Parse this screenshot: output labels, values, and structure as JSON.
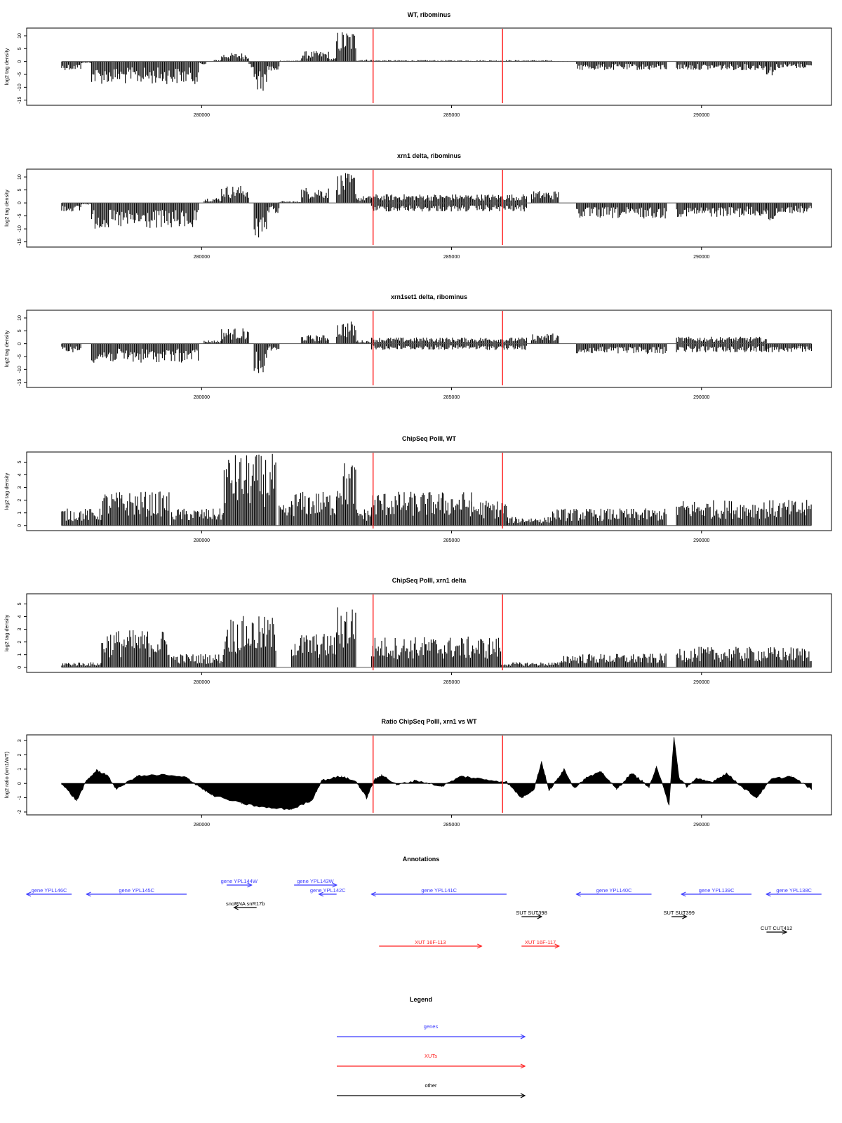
{
  "colors": {
    "gene": "#3b3bff",
    "xut": "#ff2020",
    "other": "#000000",
    "marker": "#ff3030",
    "bars": "#000000",
    "frame": "#000000"
  },
  "chart_data": [
    {
      "type": "bar",
      "title": "WT, ribominus",
      "ylabel": "log2 tag density",
      "ylim": [
        -17,
        13
      ],
      "yticks": [
        10,
        5,
        0,
        -5,
        -10,
        -15
      ],
      "xlim": [
        276500,
        292600
      ],
      "xticks": [
        280000,
        285000,
        290000
      ],
      "grid": false,
      "markers": [
        283430,
        286020
      ],
      "baseline": 0,
      "segments": [
        {
          "from": 277200,
          "to": 277600,
          "level": -2.5
        },
        {
          "from": 277600,
          "to": 277800,
          "level": -0.5
        },
        {
          "from": 277800,
          "to": 279950,
          "level": -6.5
        },
        {
          "from": 279950,
          "to": 280100,
          "level": -1
        },
        {
          "from": 280250,
          "to": 280400,
          "level": 0.5
        },
        {
          "from": 280400,
          "to": 280950,
          "level": 2.5
        },
        {
          "from": 280950,
          "to": 281050,
          "level": -2
        },
        {
          "from": 281050,
          "to": 281300,
          "level": -8.5
        },
        {
          "from": 281300,
          "to": 281550,
          "level": -3
        },
        {
          "from": 281550,
          "to": 282000,
          "level": 0.3
        },
        {
          "from": 282000,
          "to": 282550,
          "level": 3
        },
        {
          "from": 282550,
          "to": 282700,
          "level": 1
        },
        {
          "from": 282700,
          "to": 283100,
          "level": 9
        },
        {
          "from": 283100,
          "to": 283400,
          "level": 0.6
        },
        {
          "from": 283400,
          "to": 287000,
          "level": 0.4
        },
        {
          "from": 287000,
          "to": 287350,
          "level": 0.1
        },
        {
          "from": 287500,
          "to": 289300,
          "level": -2.5
        },
        {
          "from": 289500,
          "to": 291300,
          "level": -2.5
        },
        {
          "from": 291300,
          "to": 291500,
          "level": -4
        },
        {
          "from": 291500,
          "to": 292200,
          "level": -2
        }
      ]
    },
    {
      "type": "bar",
      "title": "xrn1 delta, ribominus",
      "ylabel": "log2 tag density",
      "ylim": [
        -17,
        13
      ],
      "yticks": [
        10,
        5,
        0,
        -5,
        -10,
        -15
      ],
      "xlim": [
        276500,
        292600
      ],
      "xticks": [
        280000,
        285000,
        290000
      ],
      "grid": false,
      "markers": [
        283430,
        286020
      ],
      "baseline": 0,
      "segments": [
        {
          "from": 277200,
          "to": 277600,
          "level": -2.5
        },
        {
          "from": 277600,
          "to": 277800,
          "level": -0.5
        },
        {
          "from": 277800,
          "to": 279950,
          "level": -7.5
        },
        {
          "from": 280050,
          "to": 280400,
          "level": 1.5
        },
        {
          "from": 280400,
          "to": 280950,
          "level": 5
        },
        {
          "from": 281050,
          "to": 281300,
          "level": -10
        },
        {
          "from": 281300,
          "to": 281550,
          "level": -3
        },
        {
          "from": 281550,
          "to": 282000,
          "level": 0.5
        },
        {
          "from": 282000,
          "to": 282550,
          "level": 4.5
        },
        {
          "from": 282700,
          "to": 283100,
          "level": 8.5
        },
        {
          "from": 283100,
          "to": 283400,
          "level": 2
        },
        {
          "from": 283400,
          "to": 286500,
          "level": 2.5
        },
        {
          "from": 283400,
          "to": 286500,
          "level": -2.5
        },
        {
          "from": 286600,
          "to": 287150,
          "level": 3.5
        },
        {
          "from": 287500,
          "to": 289300,
          "level": -4.5
        },
        {
          "from": 289500,
          "to": 291300,
          "level": -4
        },
        {
          "from": 291300,
          "to": 291500,
          "level": -6
        },
        {
          "from": 291500,
          "to": 292200,
          "level": -3
        }
      ]
    },
    {
      "type": "bar",
      "title": "xrn1set1 delta, ribominus",
      "ylabel": "log2 tag density",
      "ylim": [
        -17,
        13
      ],
      "yticks": [
        10,
        5,
        0,
        -5,
        -10,
        -15
      ],
      "xlim": [
        276500,
        292600
      ],
      "xticks": [
        280000,
        285000,
        290000
      ],
      "grid": false,
      "markers": [
        283430,
        286020
      ],
      "baseline": 0,
      "segments": [
        {
          "from": 277200,
          "to": 277600,
          "level": -2.5
        },
        {
          "from": 277800,
          "to": 279950,
          "level": -5.5
        },
        {
          "from": 280050,
          "to": 280400,
          "level": 1
        },
        {
          "from": 280400,
          "to": 280950,
          "level": 4.5
        },
        {
          "from": 281050,
          "to": 281300,
          "level": -8.5
        },
        {
          "from": 281300,
          "to": 281550,
          "level": -2
        },
        {
          "from": 282000,
          "to": 282550,
          "level": 2.5
        },
        {
          "from": 282700,
          "to": 283100,
          "level": 6.5
        },
        {
          "from": 283100,
          "to": 283400,
          "level": 1
        },
        {
          "from": 283400,
          "to": 286500,
          "level": 1.8
        },
        {
          "from": 283400,
          "to": 286500,
          "level": -1.8
        },
        {
          "from": 286600,
          "to": 287150,
          "level": 3
        },
        {
          "from": 287500,
          "to": 289300,
          "level": -3
        },
        {
          "from": 289500,
          "to": 291300,
          "level": 2
        },
        {
          "from": 289500,
          "to": 291300,
          "level": -2.5
        },
        {
          "from": 291300,
          "to": 292200,
          "level": -2.5
        }
      ]
    },
    {
      "type": "bar",
      "title": "ChipSeq PolII, WT",
      "ylabel": "log2 tag density",
      "ylim": [
        -0.4,
        5.8
      ],
      "yticks": [
        0,
        1,
        2,
        3,
        4,
        5
      ],
      "xlim": [
        276500,
        292600
      ],
      "xticks": [
        280000,
        285000,
        290000
      ],
      "grid": false,
      "markers": [
        283430,
        286020
      ],
      "baseline": 0,
      "segments": [
        {
          "from": 277200,
          "to": 278000,
          "level": 1
        },
        {
          "from": 278000,
          "to": 279350,
          "level": 2
        },
        {
          "from": 279400,
          "to": 280450,
          "level": 1
        },
        {
          "from": 280450,
          "to": 281500,
          "level": 4.2
        },
        {
          "from": 281550,
          "to": 281800,
          "level": 1.2
        },
        {
          "from": 281800,
          "to": 282700,
          "level": 2
        },
        {
          "from": 282700,
          "to": 283100,
          "level": 3.8
        },
        {
          "from": 283100,
          "to": 283400,
          "level": 1
        },
        {
          "from": 283400,
          "to": 285400,
          "level": 2
        },
        {
          "from": 285400,
          "to": 286100,
          "level": 1.5
        },
        {
          "from": 286100,
          "to": 287000,
          "level": 0.5
        },
        {
          "from": 287000,
          "to": 289300,
          "level": 1
        },
        {
          "from": 289500,
          "to": 292200,
          "level": 1.5
        }
      ]
    },
    {
      "type": "bar",
      "title": "ChipSeq PolII, xrn1 delta",
      "ylabel": "log2 tag density",
      "ylim": [
        -0.4,
        5.8
      ],
      "yticks": [
        0,
        1,
        2,
        3,
        4,
        5
      ],
      "xlim": [
        276500,
        292600
      ],
      "xticks": [
        280000,
        285000,
        290000
      ],
      "grid": false,
      "markers": [
        283430,
        286020
      ],
      "baseline": 0,
      "segments": [
        {
          "from": 277200,
          "to": 278000,
          "level": 0.3
        },
        {
          "from": 278000,
          "to": 279350,
          "level": 2.2
        },
        {
          "from": 279400,
          "to": 280450,
          "level": 0.8
        },
        {
          "from": 280450,
          "to": 281500,
          "level": 3
        },
        {
          "from": 281800,
          "to": 282700,
          "level": 2
        },
        {
          "from": 282700,
          "to": 283100,
          "level": 3.8
        },
        {
          "from": 283400,
          "to": 286000,
          "level": 1.8
        },
        {
          "from": 286000,
          "to": 287200,
          "level": 0.3
        },
        {
          "from": 287200,
          "to": 289300,
          "level": 0.8
        },
        {
          "from": 289500,
          "to": 292200,
          "level": 1.2
        }
      ]
    },
    {
      "type": "area",
      "title": "Ratio ChipSeq PolII, xrn1 vs WT",
      "ylabel": "log2 ratio (xrn1/WT)",
      "ylim": [
        -2.2,
        3.4
      ],
      "yticks": [
        3,
        2,
        1,
        0,
        -1,
        -2
      ],
      "xlim": [
        276500,
        292600
      ],
      "xticks": [
        280000,
        285000,
        290000
      ],
      "grid": false,
      "markers": [
        283430,
        286020
      ],
      "baseline": 0,
      "x": [
        277200,
        277500,
        277700,
        277900,
        278100,
        278300,
        278700,
        279200,
        279700,
        279950,
        280200,
        280800,
        281300,
        281800,
        282200,
        282400,
        282800,
        283100,
        283300,
        283450,
        283600,
        283900,
        284300,
        284800,
        285200,
        285600,
        286100,
        286400,
        286650,
        286800,
        286950,
        287100,
        287250,
        287450,
        287700,
        288000,
        288300,
        288600,
        288800,
        288950,
        289100,
        289350,
        289450,
        289550,
        289700,
        289900,
        290200,
        290500,
        290800,
        291100,
        291400,
        291800,
        292200
      ],
      "values": [
        0,
        -1.2,
        0.2,
        0.9,
        0.6,
        -0.4,
        0.5,
        0.6,
        0.4,
        -0.2,
        -0.8,
        -1.4,
        -1.7,
        -1.8,
        -1.2,
        0.2,
        0.5,
        0.1,
        -1.0,
        0.2,
        0.6,
        -0.1,
        0.2,
        -0.2,
        0.5,
        0.3,
        0.1,
        -1.0,
        -0.4,
        1.5,
        -0.5,
        0.2,
        1.0,
        -0.3,
        0.4,
        0.8,
        -0.4,
        0.7,
        0.2,
        -0.3,
        1.2,
        -1.5,
        3.2,
        0.4,
        -0.2,
        0.3,
        0.1,
        0.7,
        -0.2,
        -1.0,
        0.3,
        0.5,
        -0.4
      ]
    }
  ],
  "annotations": {
    "title": "Annotations",
    "xlim": [
      276500,
      292600
    ],
    "items": [
      {
        "label": "gene YPL146C",
        "kind": "gene",
        "start": 276500,
        "end": 277400,
        "dir": -1,
        "row": 0
      },
      {
        "label": "gene YPL145C",
        "kind": "gene",
        "start": 277700,
        "end": 279700,
        "dir": -1,
        "row": 0
      },
      {
        "label": "gene YPL144W",
        "kind": "gene",
        "start": 280500,
        "end": 281000,
        "dir": 1,
        "row": -1
      },
      {
        "label": "gene YPL143W",
        "kind": "gene",
        "start": 281850,
        "end": 282700,
        "dir": 1,
        "row": -1
      },
      {
        "label": "gene YPL142C",
        "kind": "gene",
        "start": 282350,
        "end": 282700,
        "dir": -1,
        "row": 0
      },
      {
        "label": "gene YPL141C",
        "kind": "gene",
        "start": 283400,
        "end": 286100,
        "dir": -1,
        "row": 0
      },
      {
        "label": "gene YPL140C",
        "kind": "gene",
        "start": 287500,
        "end": 289000,
        "dir": -1,
        "row": 0
      },
      {
        "label": "gene YPL139C",
        "kind": "gene",
        "start": 289600,
        "end": 291000,
        "dir": -1,
        "row": 0
      },
      {
        "label": "gene YPL138C",
        "kind": "gene",
        "start": 291300,
        "end": 292400,
        "dir": -1,
        "row": 0
      },
      {
        "label": "snoRNA snR17b",
        "kind": "other",
        "start": 280650,
        "end": 281100,
        "dir": -1,
        "row": 1
      },
      {
        "label": "SUT SUT398",
        "kind": "other",
        "start": 286400,
        "end": 286800,
        "dir": 1,
        "row": 2
      },
      {
        "label": "SUT SUT399",
        "kind": "other",
        "start": 289400,
        "end": 289700,
        "dir": 1,
        "row": 2
      },
      {
        "label": "CUT CUT412",
        "kind": "other",
        "start": 291300,
        "end": 291700,
        "dir": 1,
        "row": 3
      },
      {
        "label": "XUT 16F-113",
        "kind": "xut",
        "start": 283550,
        "end": 285600,
        "dir": 1,
        "row": 4
      },
      {
        "label": "XUT 16F-117",
        "kind": "xut",
        "start": 286400,
        "end": 287150,
        "dir": 1,
        "row": 4
      }
    ]
  },
  "legend": {
    "title": "Legend",
    "items": [
      {
        "label": "genes",
        "kind": "gene"
      },
      {
        "label": "XUTs",
        "kind": "xut"
      },
      {
        "label": "other",
        "kind": "other"
      }
    ]
  }
}
